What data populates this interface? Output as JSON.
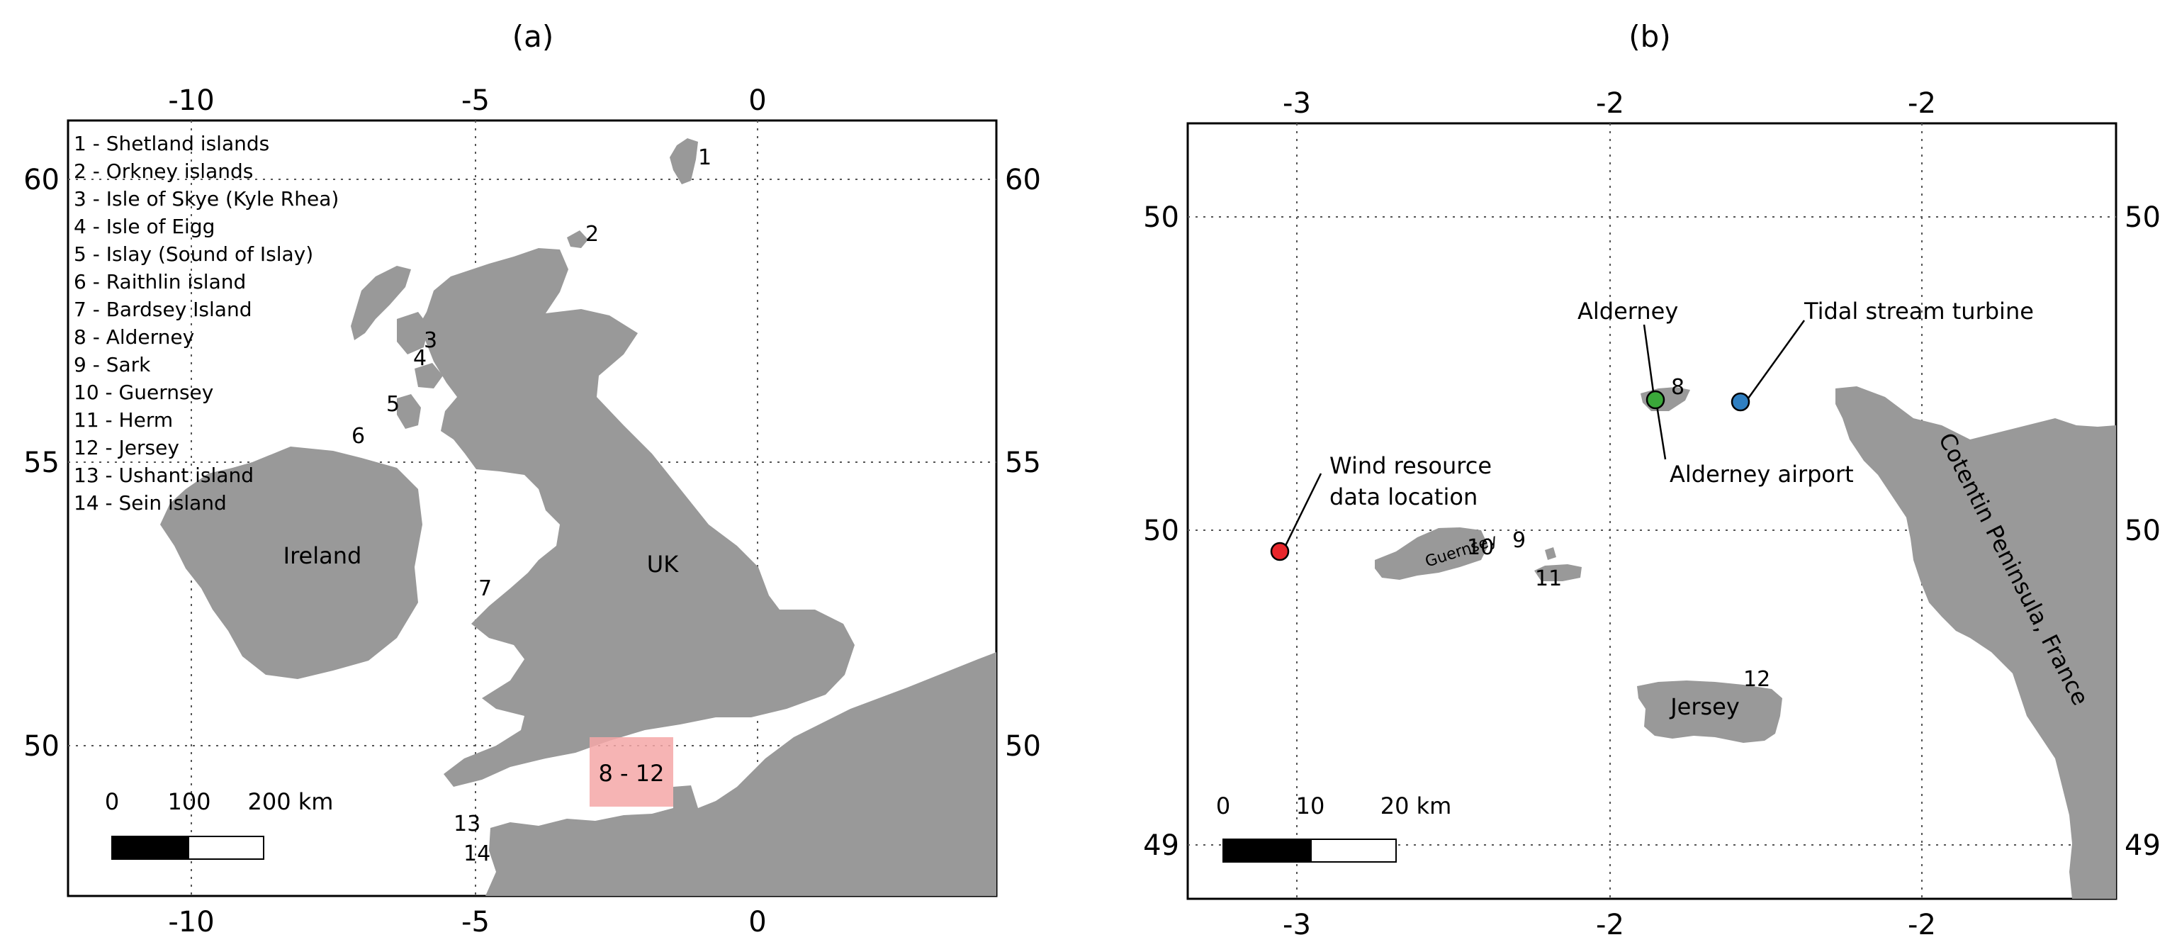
{
  "panel_a": {
    "title": "(a)",
    "x_ticks": [
      "-10",
      "-5",
      "0"
    ],
    "y_ticks": [
      "60",
      "55",
      "50"
    ],
    "legend": [
      "1 - Shetland islands",
      "2 - Orkney islands",
      "3 - Isle of Skye (Kyle Rhea)",
      "4 - Isle of Eigg",
      "5 - Islay (Sound of Islay)",
      "6 - Raithlin island",
      "7 - Bardsey Island",
      "8 - Alderney",
      "9 - Sark",
      "10 - Guernsey",
      "11 - Herm",
      "12 - Jersey",
      "13 - Ushant island",
      "14 - Sein island"
    ],
    "markers": [
      "1",
      "2",
      "3",
      "4",
      "5",
      "6",
      "7",
      "13",
      "14"
    ],
    "region_labels": {
      "ireland": "Ireland",
      "uk": "UK"
    },
    "inset_label": "8 - 12",
    "scale_bar": {
      "l0": "0",
      "l1": "100",
      "l2": "200 km"
    },
    "colors": {
      "land": "#999999",
      "highlight": "#f4a7a7"
    }
  },
  "panel_b": {
    "title": "(b)",
    "x_ticks": [
      "-3",
      "-2",
      "-2"
    ],
    "y_ticks": [
      "50",
      "50",
      "49"
    ],
    "markers": {
      "alderney": "8",
      "sark": "9",
      "guernsey": "10",
      "herm": "11",
      "jersey": "12"
    },
    "island_labels": {
      "guernsey": "Guernsey",
      "jersey": "Jersey"
    },
    "annotations": {
      "alderney": "Alderney",
      "tidal": "Tidal stream turbine",
      "airport": "Alderney airport",
      "wind_line1": "Wind   resource",
      "wind_line2": "data location",
      "cotentin": "Cotentin Peninsula, France"
    },
    "points": [
      {
        "name": "Wind resource data location",
        "color": "#e8262b"
      },
      {
        "name": "Alderney airport",
        "color": "#3aa83a"
      },
      {
        "name": "Tidal stream turbine",
        "color": "#2f7fc1"
      }
    ],
    "scale_bar": {
      "l0": "0",
      "l1": "10",
      "l2": "20 km"
    }
  }
}
